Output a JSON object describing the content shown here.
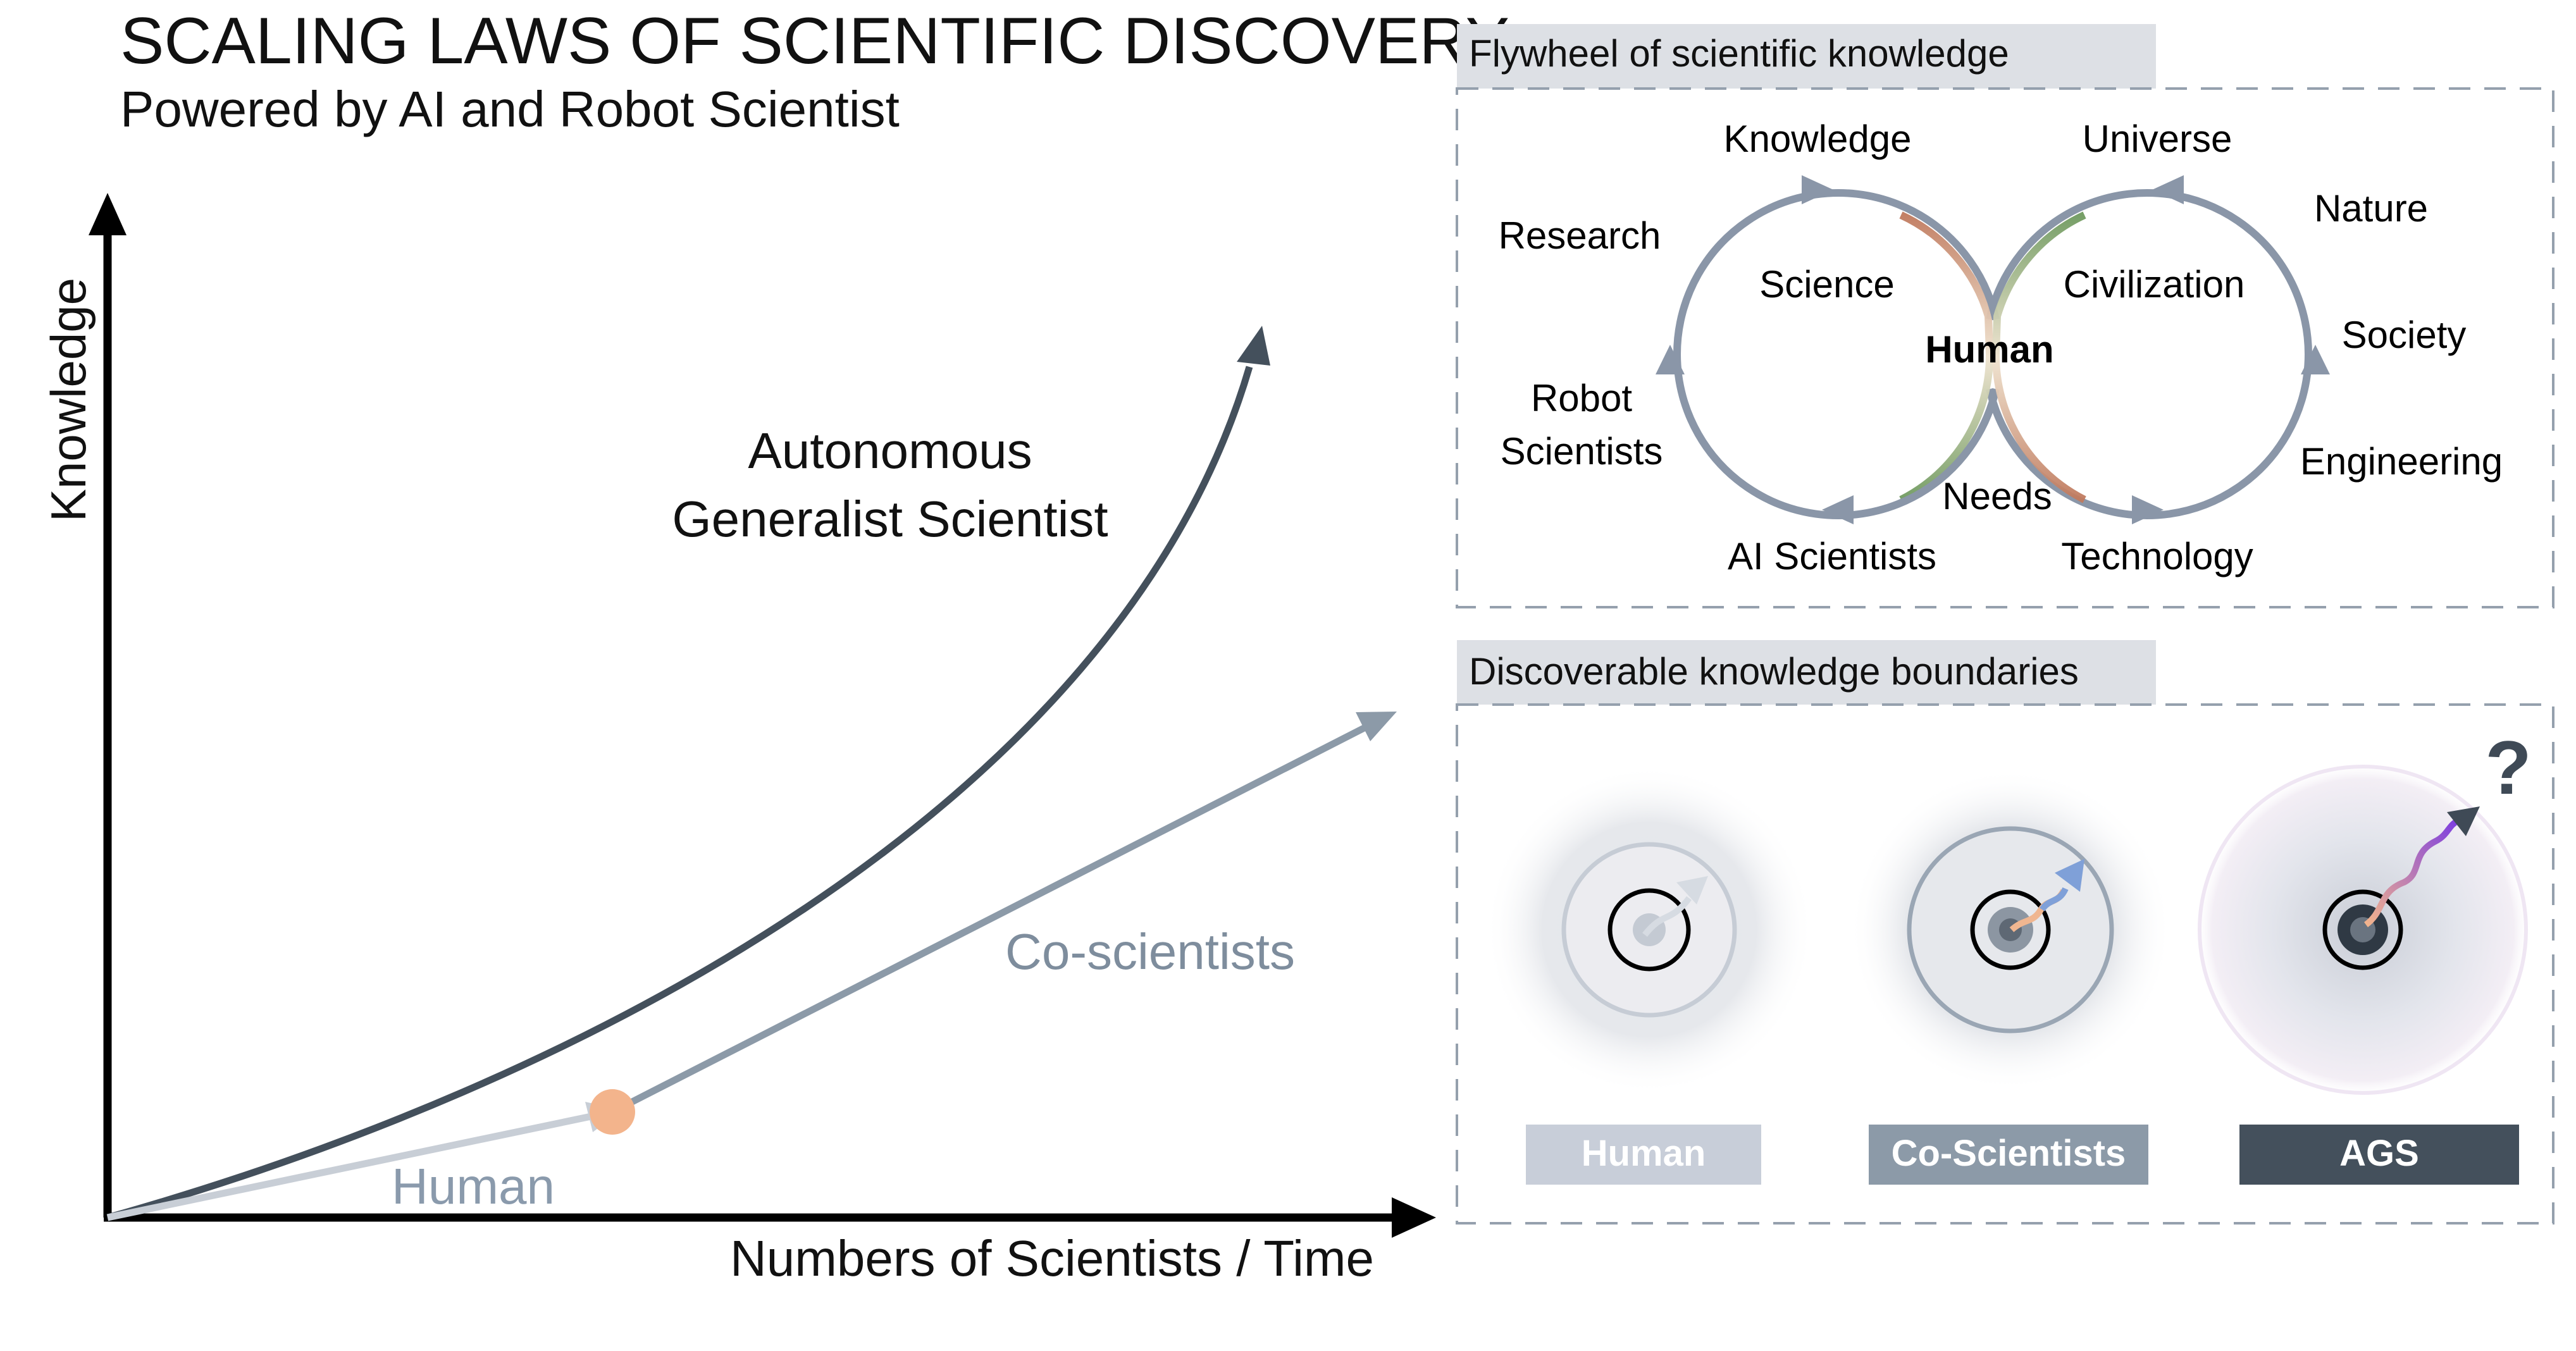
{
  "header": {
    "title": "SCALING LAWS OF SCIENTIFIC DISCOVERY",
    "subtitle": "Powered by AI and Robot Scientist"
  },
  "left_chart": {
    "ylabel": "Knowledge",
    "xlabel": "Numbers of Scientists / Time",
    "curve_labels": {
      "ags_line1": "Autonomous",
      "ags_line2": "Generalist Scientist",
      "co": "Co-scientists",
      "human": "Human"
    }
  },
  "flywheel": {
    "title": "Flywheel of scientific knowledge",
    "labels": {
      "knowledge": "Knowledge",
      "universe": "Universe",
      "research": "Research",
      "nature": "Nature",
      "science": "Science",
      "civilization": "Civilization",
      "human": "Human",
      "society": "Society",
      "robot1": "Robot",
      "robot2": "Scientists",
      "engineering": "Engineering",
      "needs": "Needs",
      "ai_scientists": "AI Scientists",
      "technology": "Technology"
    }
  },
  "boundaries": {
    "title": "Discoverable knowledge boundaries",
    "question": "?",
    "badges": {
      "human": "Human",
      "co": "Co-Scientists",
      "ags": "AGS"
    }
  },
  "colors": {
    "dark_slate": "#44505c",
    "co_slate": "#8c9aa8",
    "human_grey": "#c8ced6",
    "orange_dot": "#f3b48c",
    "panel_header": "#dde0e5",
    "dashed_border": "#95a0ad"
  }
}
